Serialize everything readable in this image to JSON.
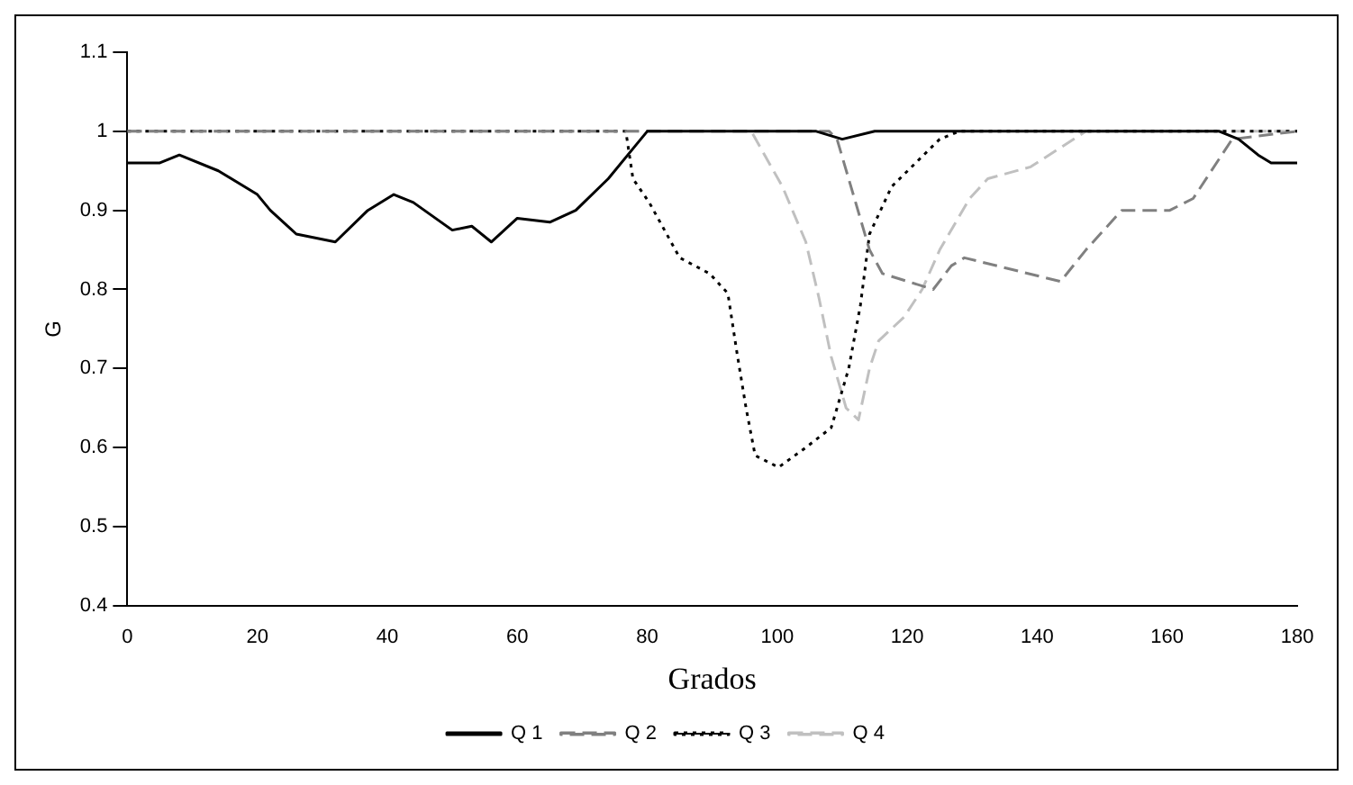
{
  "chart_data": {
    "type": "line",
    "xlabel": "Grados",
    "ylabel": "G",
    "xlim": [
      0,
      180
    ],
    "xticks": [
      0,
      20,
      40,
      60,
      80,
      100,
      120,
      140,
      160,
      180
    ],
    "ylim": [
      0.4,
      1.1
    ],
    "yticks": [
      0.4,
      0.5,
      0.6,
      0.7,
      0.8,
      0.9,
      1,
      1.1
    ],
    "grid": false,
    "legend": "bottom",
    "marker": "none",
    "series": [
      {
        "name": "Q 1",
        "color": "#000000",
        "line_style": "solid",
        "x": [
          0,
          5,
          8,
          14,
          20,
          22,
          26,
          32,
          37,
          41,
          44,
          50,
          53,
          56,
          60,
          65,
          69,
          74,
          78,
          80,
          104,
          106,
          110,
          115,
          168,
          171,
          174,
          176,
          180
        ],
        "values": [
          0.96,
          0.96,
          0.97,
          0.95,
          0.92,
          0.9,
          0.87,
          0.86,
          0.9,
          0.92,
          0.91,
          0.875,
          0.88,
          0.86,
          0.89,
          0.885,
          0.9,
          0.94,
          0.98,
          1,
          1,
          1,
          0.99,
          1,
          1,
          0.99,
          0.97,
          0.96,
          0.96
        ]
      },
      {
        "name": "Q 2",
        "color": "#808080",
        "line_style": "dashed",
        "x": [
          0,
          108,
          109.2,
          114.2,
          116.2,
          124,
          126.8,
          128.8,
          143.6,
          147.5,
          153,
          160.4,
          164,
          170,
          180
        ],
        "values": [
          1,
          1,
          0.99,
          0.85,
          0.82,
          0.8,
          0.83,
          0.84,
          0.81,
          0.85,
          0.9,
          0.9,
          0.915,
          0.99,
          1
        ]
      },
      {
        "name": "Q 3",
        "color": "#000000",
        "line_style": "dotted",
        "x": [
          0,
          76.7,
          77.8,
          80.3,
          85,
          89.6,
          92.4,
          93.8,
          95.2,
          96.6,
          100.2,
          104.4,
          108.3,
          111,
          112.8,
          114.2,
          117.6,
          125,
          128,
          145.6,
          180
        ],
        "values": [
          1,
          1,
          0.94,
          0.91,
          0.84,
          0.82,
          0.795,
          0.72,
          0.65,
          0.59,
          0.575,
          0.6,
          0.625,
          0.7,
          0.78,
          0.87,
          0.93,
          0.99,
          1,
          1,
          1
        ]
      },
      {
        "name": "Q 4",
        "color": "#c0c0c0",
        "line_style": "dashed",
        "x": [
          0,
          96,
          100.8,
          104.4,
          106.4,
          108.3,
          110.6,
          112.5,
          114.2,
          115.6,
          119.5,
          122.3,
          125,
          129.6,
          132.4,
          139,
          147.5,
          180
        ],
        "values": [
          1,
          1,
          0.93,
          0.86,
          0.79,
          0.715,
          0.65,
          0.635,
          0.7,
          0.735,
          0.765,
          0.8,
          0.85,
          0.915,
          0.94,
          0.955,
          1,
          1
        ]
      }
    ]
  }
}
